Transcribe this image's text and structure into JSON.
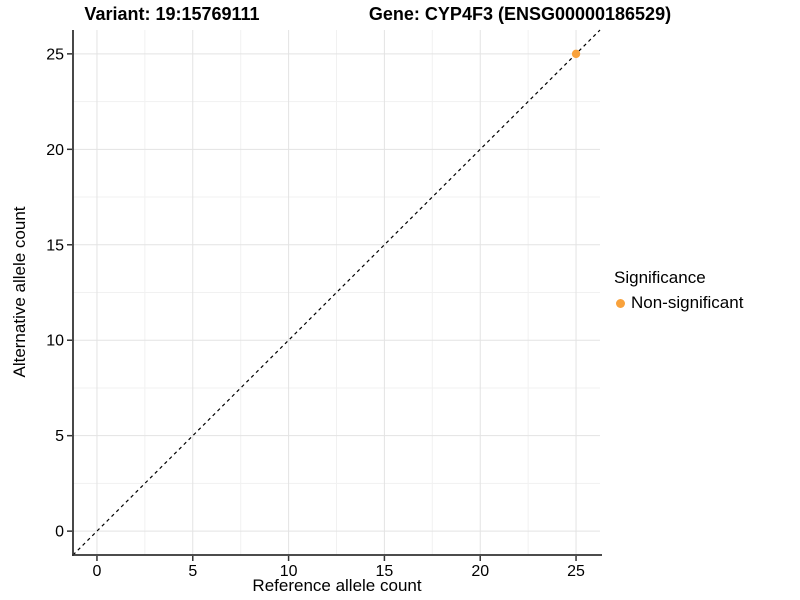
{
  "header": {
    "variant_title": "Variant: 19:15769111",
    "gene_title": "Gene: CYP4F3 (ENSG00000186529)"
  },
  "chart_data": {
    "type": "scatter",
    "xlabel": "Reference allele count",
    "ylabel": "Alternative allele count",
    "xlim": [
      -1.25,
      26.25
    ],
    "ylim": [
      -1.25,
      26.25
    ],
    "xticks": [
      0,
      5,
      10,
      15,
      20,
      25
    ],
    "yticks": [
      0,
      5,
      10,
      15,
      20,
      25
    ],
    "minor_ticks": [
      2.5,
      7.5,
      12.5,
      17.5,
      22.5
    ],
    "grid": "major and minor gridlines on",
    "points": [
      {
        "x": 25,
        "y": 25,
        "series": "Non-significant"
      }
    ],
    "reference_line": {
      "kind": "identity y=x",
      "style": "dashed",
      "color": "#000000"
    },
    "legend_position": "right"
  },
  "legend": {
    "title": "Significance",
    "items": [
      {
        "label": "Non-significant",
        "color": "#F9A23C",
        "marker": "circle-icon"
      }
    ]
  },
  "colors": {
    "background": "#FFFFFF",
    "point": "#F9A23C",
    "axis_line": "#333333",
    "tick_mark": "#333333",
    "tick_label": "#000000",
    "grid_major": "#E3E3E3",
    "grid_minor": "#F1F1F1",
    "dashed_line": "#000000"
  }
}
